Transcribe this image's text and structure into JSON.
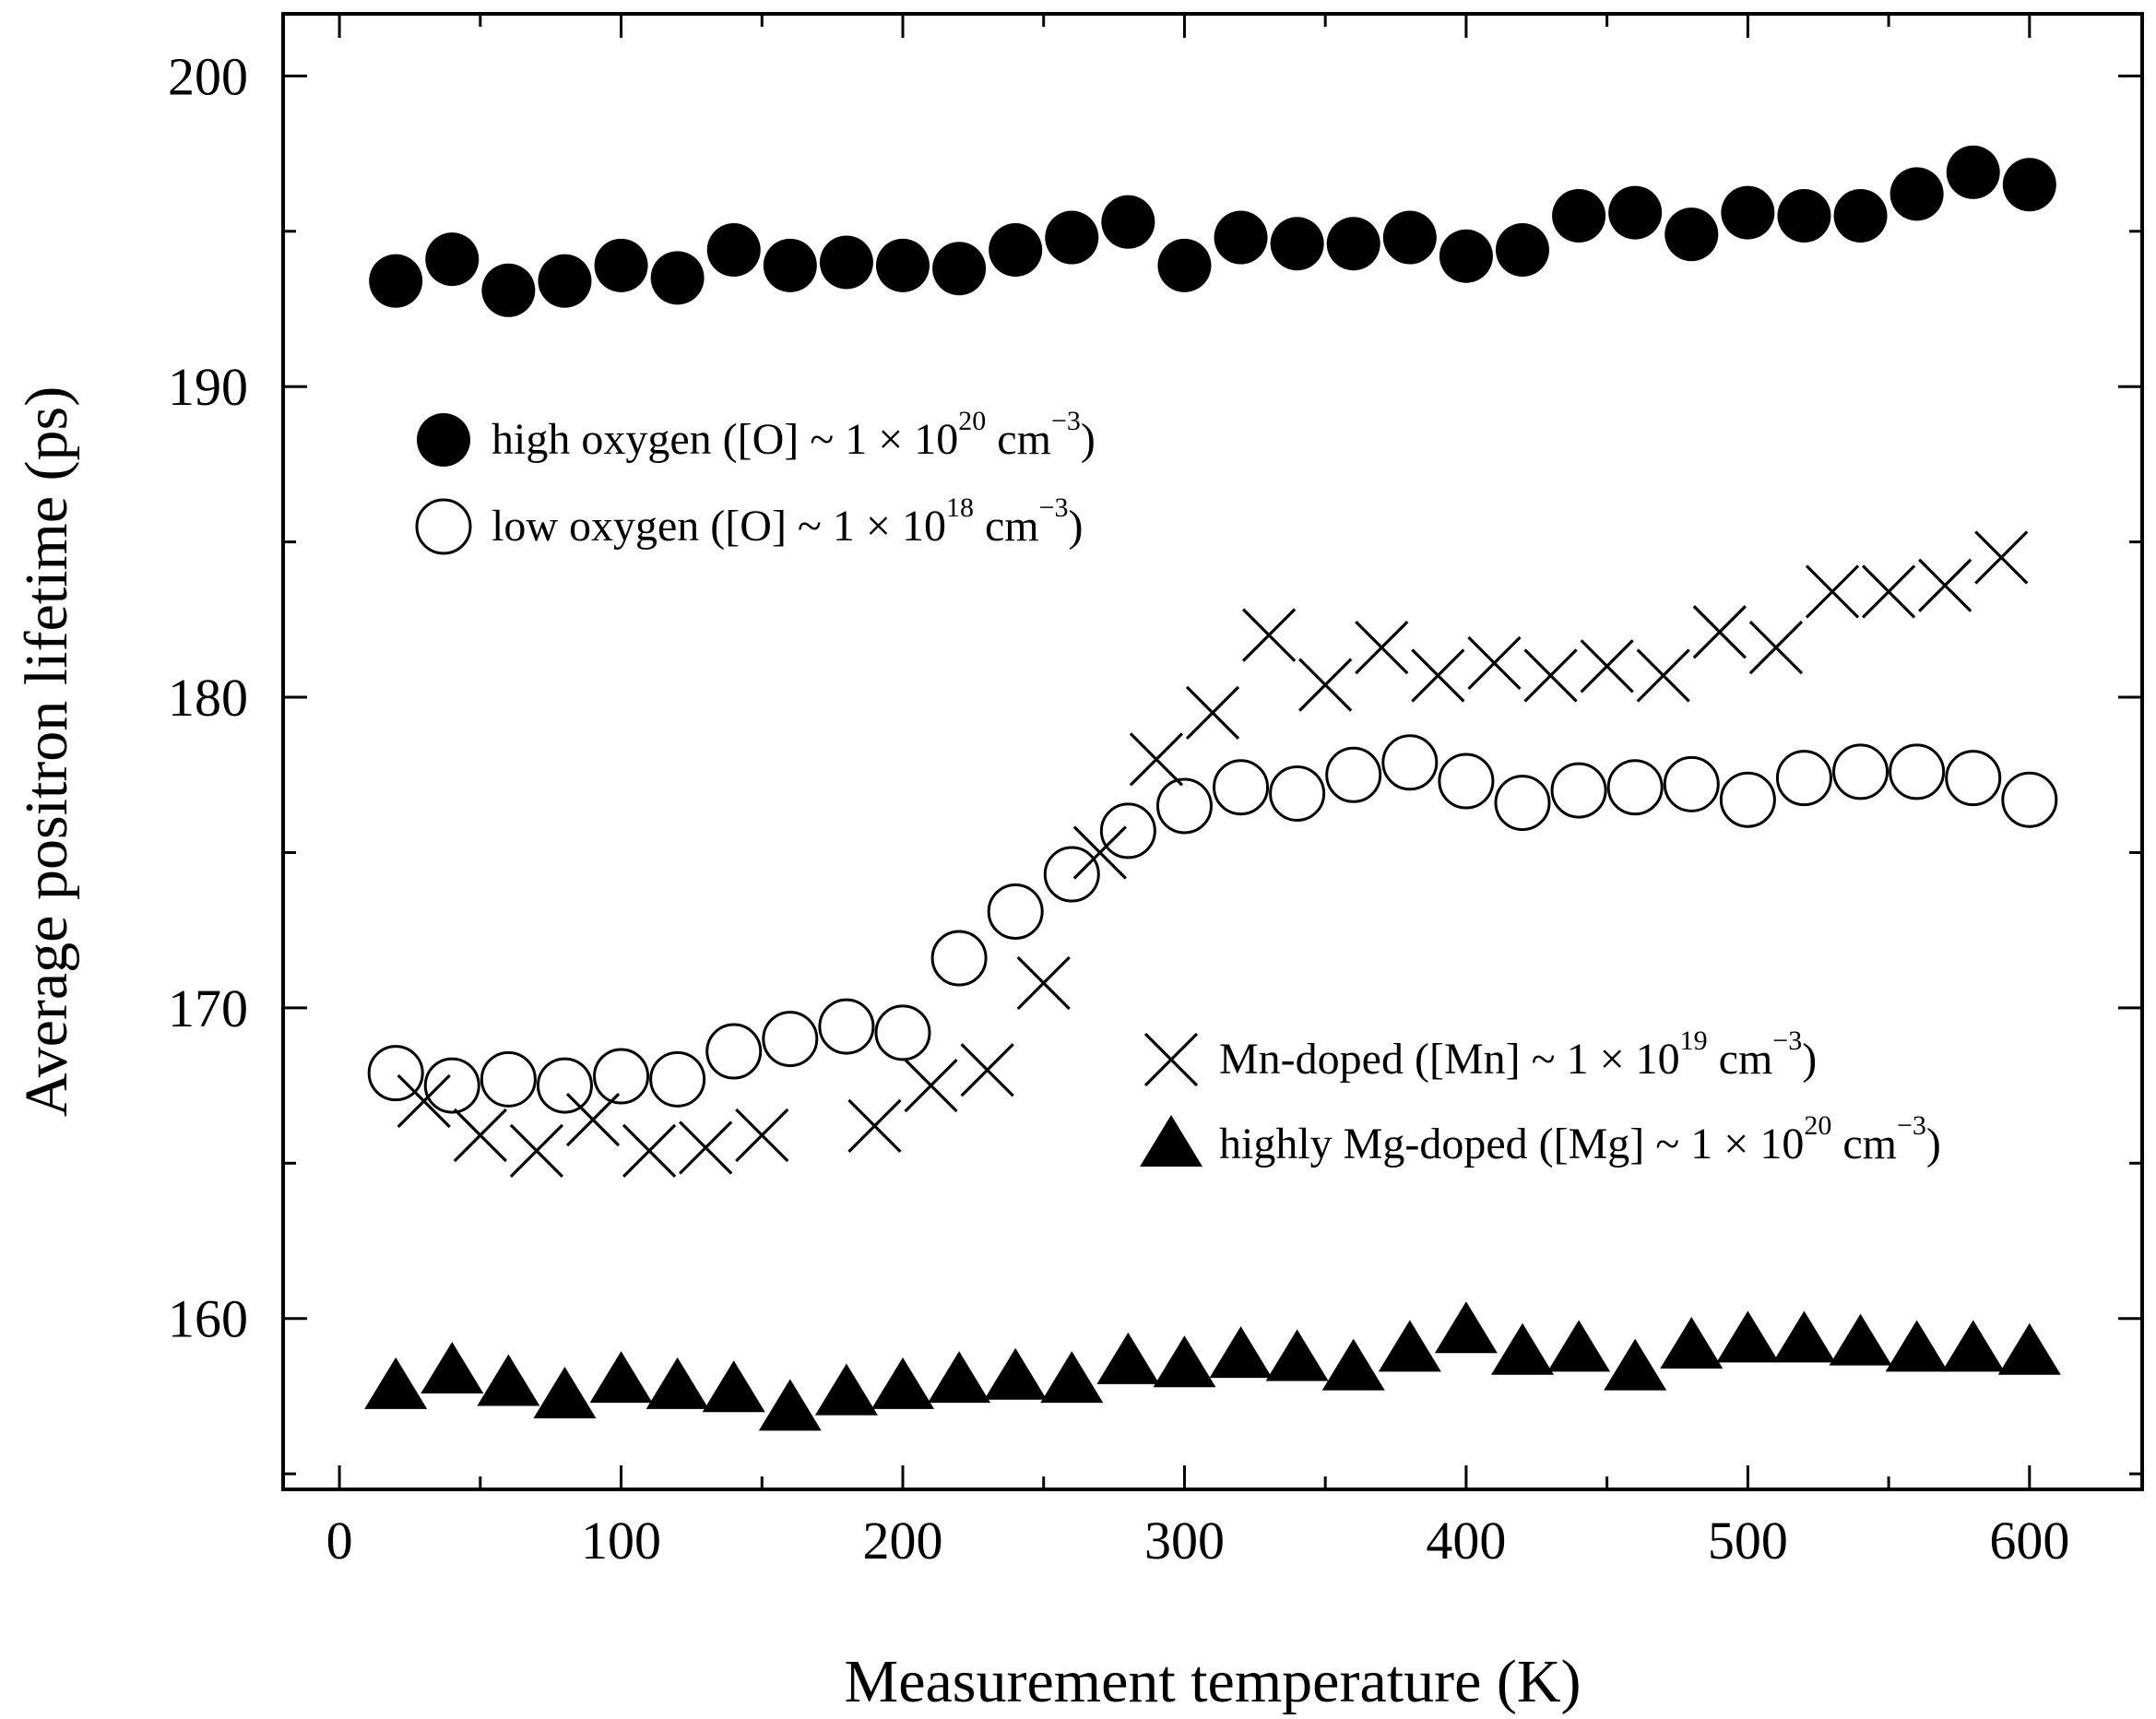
{
  "chart_data": {
    "type": "scatter",
    "title": "",
    "xlabel": "Measurement temperature (K)",
    "ylabel": "Average positron lifetime (ps)",
    "xlim": [
      -20,
      640
    ],
    "ylim": [
      154.5,
      202
    ],
    "x_ticks": [
      0,
      100,
      200,
      300,
      400,
      500,
      600
    ],
    "y_ticks": [
      160,
      170,
      180,
      190,
      200
    ],
    "grid": false,
    "legend": [
      {
        "series": "high oxygen",
        "marker": "filled-circle",
        "text": "high oxygen ([O] ~ 1 × 10",
        "sup": "20",
        "unit": " cm",
        "unit_sup": "−3",
        "close": ")",
        "placement": "upper-left"
      },
      {
        "series": "low oxygen",
        "marker": "open-circle",
        "text": "low oxygen ([O] ~ 1 × 10",
        "sup": "18",
        "unit": " cm",
        "unit_sup": "−3",
        "close": ")",
        "placement": "upper-left"
      },
      {
        "series": "Mn-doped",
        "marker": "cross",
        "text": "Mn-doped ([Mn] ~ 1 × 10",
        "sup": "19",
        "unit": " cm",
        "unit_sup": "−3",
        "close": ")",
        "placement": "lower-right"
      },
      {
        "series": "highly Mg-doped",
        "marker": "filled-triangle",
        "text": "highly Mg-doped ([Mg] ~ 1 × 10",
        "sup": "20",
        "unit": " cm",
        "unit_sup": "−3",
        "close": ")",
        "placement": "lower-right"
      }
    ],
    "series": [
      {
        "name": "high oxygen",
        "marker": "filled-circle",
        "x": [
          20,
          40,
          60,
          80,
          100,
          120,
          140,
          160,
          180,
          200,
          220,
          240,
          260,
          280,
          300,
          320,
          340,
          360,
          380,
          400,
          420,
          440,
          460,
          480,
          500,
          520,
          540,
          560,
          580,
          600
        ],
        "y": [
          193.4,
          194.1,
          193.1,
          193.4,
          193.9,
          193.5,
          194.4,
          193.9,
          194.0,
          193.9,
          193.8,
          194.4,
          194.8,
          195.3,
          193.9,
          194.8,
          194.6,
          194.6,
          194.8,
          194.2,
          194.4,
          195.5,
          195.6,
          194.9,
          195.6,
          195.5,
          195.5,
          196.2,
          196.9,
          196.5
        ]
      },
      {
        "name": "low oxygen",
        "marker": "open-circle",
        "x": [
          20,
          40,
          60,
          80,
          100,
          120,
          140,
          160,
          180,
          200,
          220,
          240,
          260,
          280,
          300,
          320,
          340,
          360,
          380,
          400,
          420,
          440,
          460,
          480,
          500,
          520,
          540,
          560,
          580,
          600
        ],
        "y": [
          167.9,
          167.5,
          167.7,
          167.5,
          167.8,
          167.7,
          168.6,
          169.0,
          169.4,
          169.2,
          171.6,
          173.1,
          174.3,
          175.7,
          176.5,
          177.1,
          176.9,
          177.5,
          177.9,
          177.3,
          176.6,
          177.0,
          177.1,
          177.2,
          176.7,
          177.4,
          177.6,
          177.6,
          177.4,
          176.7
        ]
      },
      {
        "name": "Mn-doped",
        "marker": "cross",
        "x": [
          30,
          50,
          70,
          90,
          110,
          130,
          150,
          190,
          210,
          230,
          250,
          270,
          290,
          310,
          330,
          350,
          370,
          390,
          410,
          430,
          450,
          470,
          490,
          510,
          530,
          550,
          570,
          590
        ],
        "y": [
          167.0,
          165.9,
          165.4,
          166.4,
          165.4,
          165.5,
          165.9,
          166.2,
          167.5,
          168.0,
          170.8,
          175.0,
          178.0,
          179.5,
          182.0,
          180.4,
          181.6,
          180.7,
          181.1,
          180.7,
          181.0,
          180.7,
          182.1,
          181.6,
          183.4,
          183.4,
          183.6,
          184.5
        ]
      },
      {
        "name": "highly Mg-doped",
        "marker": "filled-triangle",
        "x": [
          20,
          40,
          60,
          80,
          100,
          120,
          140,
          160,
          180,
          200,
          220,
          240,
          260,
          280,
          300,
          320,
          340,
          360,
          380,
          400,
          420,
          440,
          460,
          480,
          500,
          520,
          540,
          560,
          580,
          600
        ],
        "y": [
          157.8,
          158.3,
          157.9,
          157.5,
          158.0,
          157.8,
          157.7,
          157.1,
          157.6,
          157.8,
          158.0,
          158.1,
          158.0,
          158.6,
          158.5,
          158.8,
          158.7,
          158.4,
          159.0,
          159.6,
          158.9,
          159.0,
          158.4,
          159.1,
          159.3,
          159.3,
          159.2,
          159.0,
          159.0,
          158.9
        ]
      }
    ]
  }
}
